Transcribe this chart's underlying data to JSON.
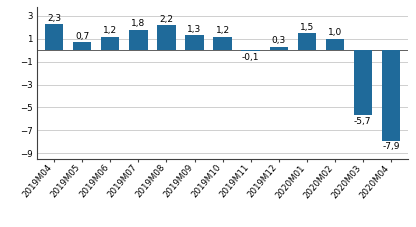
{
  "categories": [
    "2019M04",
    "2019M05",
    "2019M06",
    "2019M07",
    "2019M08",
    "2019M09",
    "2019M10",
    "2019M11",
    "2019M12",
    "2020M01",
    "2020M02",
    "2020M03",
    "2020M04"
  ],
  "values": [
    2.3,
    0.7,
    1.2,
    1.8,
    2.2,
    1.3,
    1.2,
    -0.1,
    0.3,
    1.5,
    1.0,
    -5.7,
    -7.9
  ],
  "bar_color": "#1f6a9a",
  "ylim": [
    -9.5,
    3.8
  ],
  "yticks": [
    3,
    1,
    -1,
    -3,
    -5,
    -7,
    -9
  ],
  "background_color": "#ffffff",
  "grid_color": "#c8c8c8",
  "tick_fontsize": 6.2,
  "value_label_fontsize": 6.5,
  "bar_width": 0.65
}
